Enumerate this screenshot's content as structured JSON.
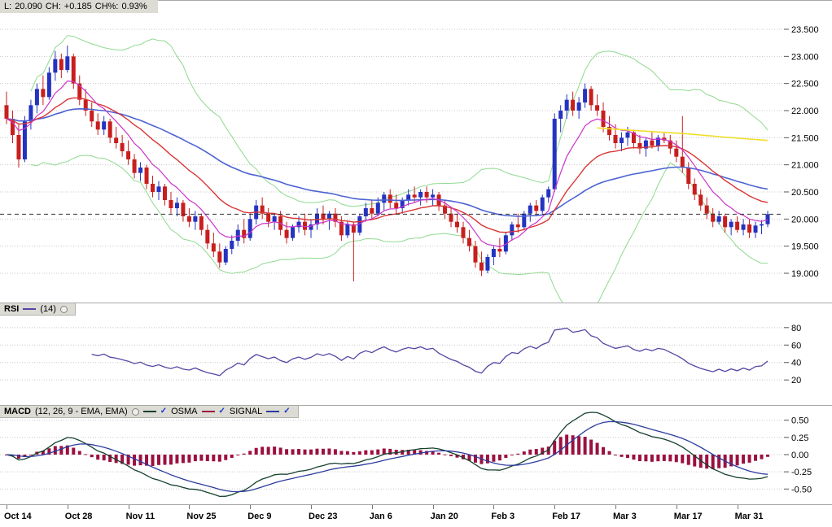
{
  "header": {
    "last_label": "L:",
    "last": "20.090",
    "change_label": "CH:",
    "change": "+0.185",
    "change_pct_label": "CH%:",
    "change_pct": "0.93%"
  },
  "ui": {
    "check": "✓"
  },
  "colors": {
    "up": "#2433C0",
    "down": "#C81E1E",
    "grid": "#C8C8C8",
    "panel_border": "#A8A8A8",
    "header_bg": "#DCDCD4",
    "dashed_line": "#333333"
  },
  "chart_data": {
    "type": "candlestick",
    "title": "",
    "x_labels": [
      "Oct 14",
      "Oct 28",
      "Nov 11",
      "Nov 25",
      "Dec 9",
      "Dec 23",
      "Jan 6",
      "Jan 20",
      "Feb 3",
      "Feb 17",
      "Mar 3",
      "Mar 17",
      "Mar 31"
    ],
    "x_label_step": 10,
    "last_price": 20.09,
    "price_axis": {
      "range": [
        18.55,
        23.95
      ],
      "tick_values": [
        23.5,
        23.0,
        22.5,
        22.0,
        21.5,
        21.0,
        20.5,
        20.0,
        19.5,
        19.0
      ],
      "tick_labels": [
        "23.500",
        "23.000",
        "22.500",
        "22.000",
        "21.500",
        "21.000",
        "20.500",
        "20.000",
        "19.500",
        "19.000"
      ]
    },
    "candles": [
      [
        22.1,
        22.35,
        21.75,
        21.85
      ],
      [
        21.85,
        22.0,
        21.4,
        21.55
      ],
      [
        21.55,
        21.75,
        20.95,
        21.1
      ],
      [
        21.1,
        21.9,
        21.05,
        21.8
      ],
      [
        21.8,
        22.2,
        21.65,
        22.1
      ],
      [
        22.1,
        22.5,
        21.95,
        22.4
      ],
      [
        22.4,
        22.65,
        22.1,
        22.25
      ],
      [
        22.25,
        22.8,
        22.2,
        22.7
      ],
      [
        22.7,
        23.1,
        22.55,
        22.95
      ],
      [
        22.95,
        23.05,
        22.6,
        22.75
      ],
      [
        22.75,
        23.2,
        22.7,
        23.0
      ],
      [
        23.0,
        23.05,
        22.4,
        22.5
      ],
      [
        22.5,
        22.65,
        22.1,
        22.2
      ],
      [
        22.2,
        22.4,
        21.9,
        22.0
      ],
      [
        22.0,
        22.15,
        21.7,
        21.8
      ],
      [
        21.8,
        21.95,
        21.55,
        21.65
      ],
      [
        21.65,
        21.9,
        21.55,
        21.8
      ],
      [
        21.8,
        21.85,
        21.4,
        21.5
      ],
      [
        21.5,
        21.7,
        21.3,
        21.4
      ],
      [
        21.4,
        21.55,
        21.15,
        21.25
      ],
      [
        21.25,
        21.45,
        21.0,
        21.1
      ],
      [
        21.1,
        21.2,
        20.75,
        20.85
      ],
      [
        20.85,
        21.05,
        20.7,
        20.95
      ],
      [
        20.95,
        21.0,
        20.55,
        20.65
      ],
      [
        20.65,
        20.8,
        20.4,
        20.5
      ],
      [
        20.5,
        20.7,
        20.35,
        20.6
      ],
      [
        20.6,
        20.65,
        20.25,
        20.35
      ],
      [
        20.35,
        20.5,
        20.1,
        20.2
      ],
      [
        20.2,
        20.4,
        20.05,
        20.3
      ],
      [
        20.3,
        20.35,
        19.95,
        20.05
      ],
      [
        20.05,
        20.2,
        19.85,
        19.95
      ],
      [
        19.95,
        20.15,
        19.8,
        20.05
      ],
      [
        20.05,
        20.1,
        19.7,
        19.8
      ],
      [
        19.8,
        19.9,
        19.45,
        19.55
      ],
      [
        19.55,
        19.75,
        19.3,
        19.4
      ],
      [
        19.4,
        19.55,
        19.1,
        19.2
      ],
      [
        19.2,
        19.5,
        19.15,
        19.45
      ],
      [
        19.45,
        19.7,
        19.35,
        19.6
      ],
      [
        19.6,
        19.9,
        19.5,
        19.8
      ],
      [
        19.8,
        20.0,
        19.55,
        19.65
      ],
      [
        19.65,
        20.1,
        19.6,
        20.0
      ],
      [
        20.0,
        20.35,
        19.9,
        20.25
      ],
      [
        20.25,
        20.4,
        20.0,
        20.1
      ],
      [
        20.1,
        20.2,
        19.85,
        19.95
      ],
      [
        19.95,
        20.1,
        19.8,
        20.05
      ],
      [
        20.05,
        20.15,
        19.7,
        19.8
      ],
      [
        19.8,
        19.95,
        19.55,
        19.65
      ],
      [
        19.65,
        19.9,
        19.6,
        19.85
      ],
      [
        19.85,
        20.05,
        19.75,
        19.95
      ],
      [
        19.95,
        20.1,
        19.7,
        19.8
      ],
      [
        19.8,
        20.0,
        19.65,
        19.9
      ],
      [
        19.9,
        20.2,
        19.8,
        20.1
      ],
      [
        20.1,
        20.25,
        19.9,
        20.0
      ],
      [
        20.0,
        20.15,
        19.8,
        20.1
      ],
      [
        20.1,
        20.2,
        19.85,
        19.95
      ],
      [
        19.95,
        20.05,
        19.6,
        19.7
      ],
      [
        19.7,
        19.95,
        19.65,
        19.9
      ],
      [
        19.9,
        19.95,
        18.85,
        19.75
      ],
      [
        19.75,
        20.1,
        19.7,
        20.05
      ],
      [
        20.05,
        20.3,
        19.95,
        20.2
      ],
      [
        20.2,
        20.35,
        20.0,
        20.1
      ],
      [
        20.1,
        20.4,
        20.05,
        20.3
      ],
      [
        20.3,
        20.5,
        20.15,
        20.45
      ],
      [
        20.45,
        20.55,
        20.2,
        20.3
      ],
      [
        20.3,
        20.45,
        20.1,
        20.2
      ],
      [
        20.2,
        20.4,
        20.1,
        20.35
      ],
      [
        20.35,
        20.55,
        20.25,
        20.45
      ],
      [
        20.45,
        20.6,
        20.3,
        20.4
      ],
      [
        20.4,
        20.55,
        20.25,
        20.5
      ],
      [
        20.5,
        20.6,
        20.3,
        20.4
      ],
      [
        20.4,
        20.55,
        20.25,
        20.45
      ],
      [
        20.45,
        20.5,
        20.15,
        20.25
      ],
      [
        20.25,
        20.35,
        20.0,
        20.1
      ],
      [
        20.1,
        20.2,
        19.85,
        19.95
      ],
      [
        19.95,
        20.1,
        19.75,
        19.85
      ],
      [
        19.85,
        19.95,
        19.55,
        19.65
      ],
      [
        19.65,
        19.8,
        19.4,
        19.5
      ],
      [
        19.5,
        19.6,
        19.1,
        19.2
      ],
      [
        19.2,
        19.4,
        18.95,
        19.05
      ],
      [
        19.05,
        19.35,
        19.0,
        19.3
      ],
      [
        19.3,
        19.5,
        19.15,
        19.45
      ],
      [
        19.45,
        19.65,
        19.3,
        19.4
      ],
      [
        19.4,
        19.75,
        19.35,
        19.7
      ],
      [
        19.7,
        19.95,
        19.6,
        19.9
      ],
      [
        19.9,
        20.1,
        19.75,
        19.85
      ],
      [
        19.85,
        20.15,
        19.8,
        20.1
      ],
      [
        20.1,
        20.3,
        19.95,
        20.25
      ],
      [
        20.25,
        20.35,
        20.05,
        20.15
      ],
      [
        20.15,
        20.45,
        20.1,
        20.4
      ],
      [
        20.4,
        20.6,
        20.3,
        20.55
      ],
      [
        20.55,
        21.95,
        20.5,
        21.85
      ],
      [
        21.85,
        22.1,
        21.6,
        22.0
      ],
      [
        22.0,
        22.3,
        21.85,
        22.2
      ],
      [
        22.2,
        22.35,
        21.9,
        22.0
      ],
      [
        22.0,
        22.25,
        21.85,
        22.15
      ],
      [
        22.15,
        22.5,
        22.05,
        22.4
      ],
      [
        22.4,
        22.45,
        22.0,
        22.1
      ],
      [
        22.1,
        22.3,
        21.9,
        22.0
      ],
      [
        22.0,
        22.15,
        21.6,
        21.7
      ],
      [
        21.7,
        21.9,
        21.45,
        21.55
      ],
      [
        21.55,
        21.75,
        21.3,
        21.4
      ],
      [
        21.4,
        21.6,
        21.25,
        21.5
      ],
      [
        21.5,
        21.7,
        21.35,
        21.6
      ],
      [
        21.6,
        21.65,
        21.3,
        21.4
      ],
      [
        21.4,
        21.55,
        21.2,
        21.3
      ],
      [
        21.3,
        21.5,
        21.15,
        21.45
      ],
      [
        21.45,
        21.6,
        21.3,
        21.35
      ],
      [
        21.35,
        21.55,
        21.25,
        21.5
      ],
      [
        21.5,
        21.6,
        21.4,
        21.45
      ],
      [
        21.45,
        21.55,
        21.2,
        21.3
      ],
      [
        21.3,
        21.45,
        21.05,
        21.15
      ],
      [
        21.15,
        21.9,
        20.85,
        20.95
      ],
      [
        20.95,
        21.05,
        20.55,
        20.65
      ],
      [
        20.65,
        20.75,
        20.35,
        20.45
      ],
      [
        20.45,
        20.55,
        20.15,
        20.25
      ],
      [
        20.25,
        20.4,
        20.0,
        20.1
      ],
      [
        20.1,
        20.2,
        19.85,
        19.95
      ],
      [
        19.95,
        20.15,
        19.9,
        20.05
      ],
      [
        20.05,
        20.1,
        19.75,
        19.85
      ],
      [
        19.85,
        20.0,
        19.7,
        19.95
      ],
      [
        19.95,
        20.05,
        19.75,
        19.8
      ],
      [
        19.8,
        20.0,
        19.7,
        19.9
      ],
      [
        19.9,
        20.0,
        19.65,
        19.75
      ],
      [
        19.75,
        19.95,
        19.65,
        19.88
      ],
      [
        19.88,
        19.98,
        19.72,
        19.905
      ],
      [
        19.905,
        20.15,
        19.85,
        20.09
      ]
    ],
    "overlays": {
      "bollinger": {
        "period": 20,
        "stddev": 2,
        "color": "#8FD98F"
      },
      "ema_fast": {
        "period": 8,
        "color": "#CC33CC"
      },
      "ema_med": {
        "period": 20,
        "color": "#D93636"
      },
      "ema_slow": {
        "period": 50,
        "color": "#4C63D2"
      },
      "yellow_ma": {
        "color": "#F2DE2A",
        "points": [
          [
            97,
            21.68
          ],
          [
            105,
            21.62
          ],
          [
            112,
            21.57
          ],
          [
            118,
            21.51
          ],
          [
            125,
            21.45
          ]
        ]
      }
    },
    "rsi": {
      "label": "RSI",
      "params": "(14)",
      "period": 14,
      "color": "#5247A3",
      "range": [
        -5,
        105
      ],
      "tick_values": [
        80,
        60,
        40,
        20
      ],
      "tick_labels": [
        "80",
        "60",
        "40",
        "20"
      ]
    },
    "macd": {
      "label": "MACD",
      "params": "(12, 26, 9 - EMA, EMA)",
      "fast": 12,
      "slow": 26,
      "signal": 9,
      "osma_label": "OSMA",
      "signal_label": "SIGNAL",
      "macd_color": "#14402C",
      "signal_color": "#2B3C9E",
      "osma_color": "#9C1040",
      "range": [
        -0.65,
        0.65
      ],
      "tick_values": [
        0.5,
        0.25,
        0,
        -0.25,
        -0.5
      ],
      "tick_labels": [
        "0.50",
        "0.25",
        "0.00",
        "-0.25",
        "-0.50"
      ]
    }
  }
}
